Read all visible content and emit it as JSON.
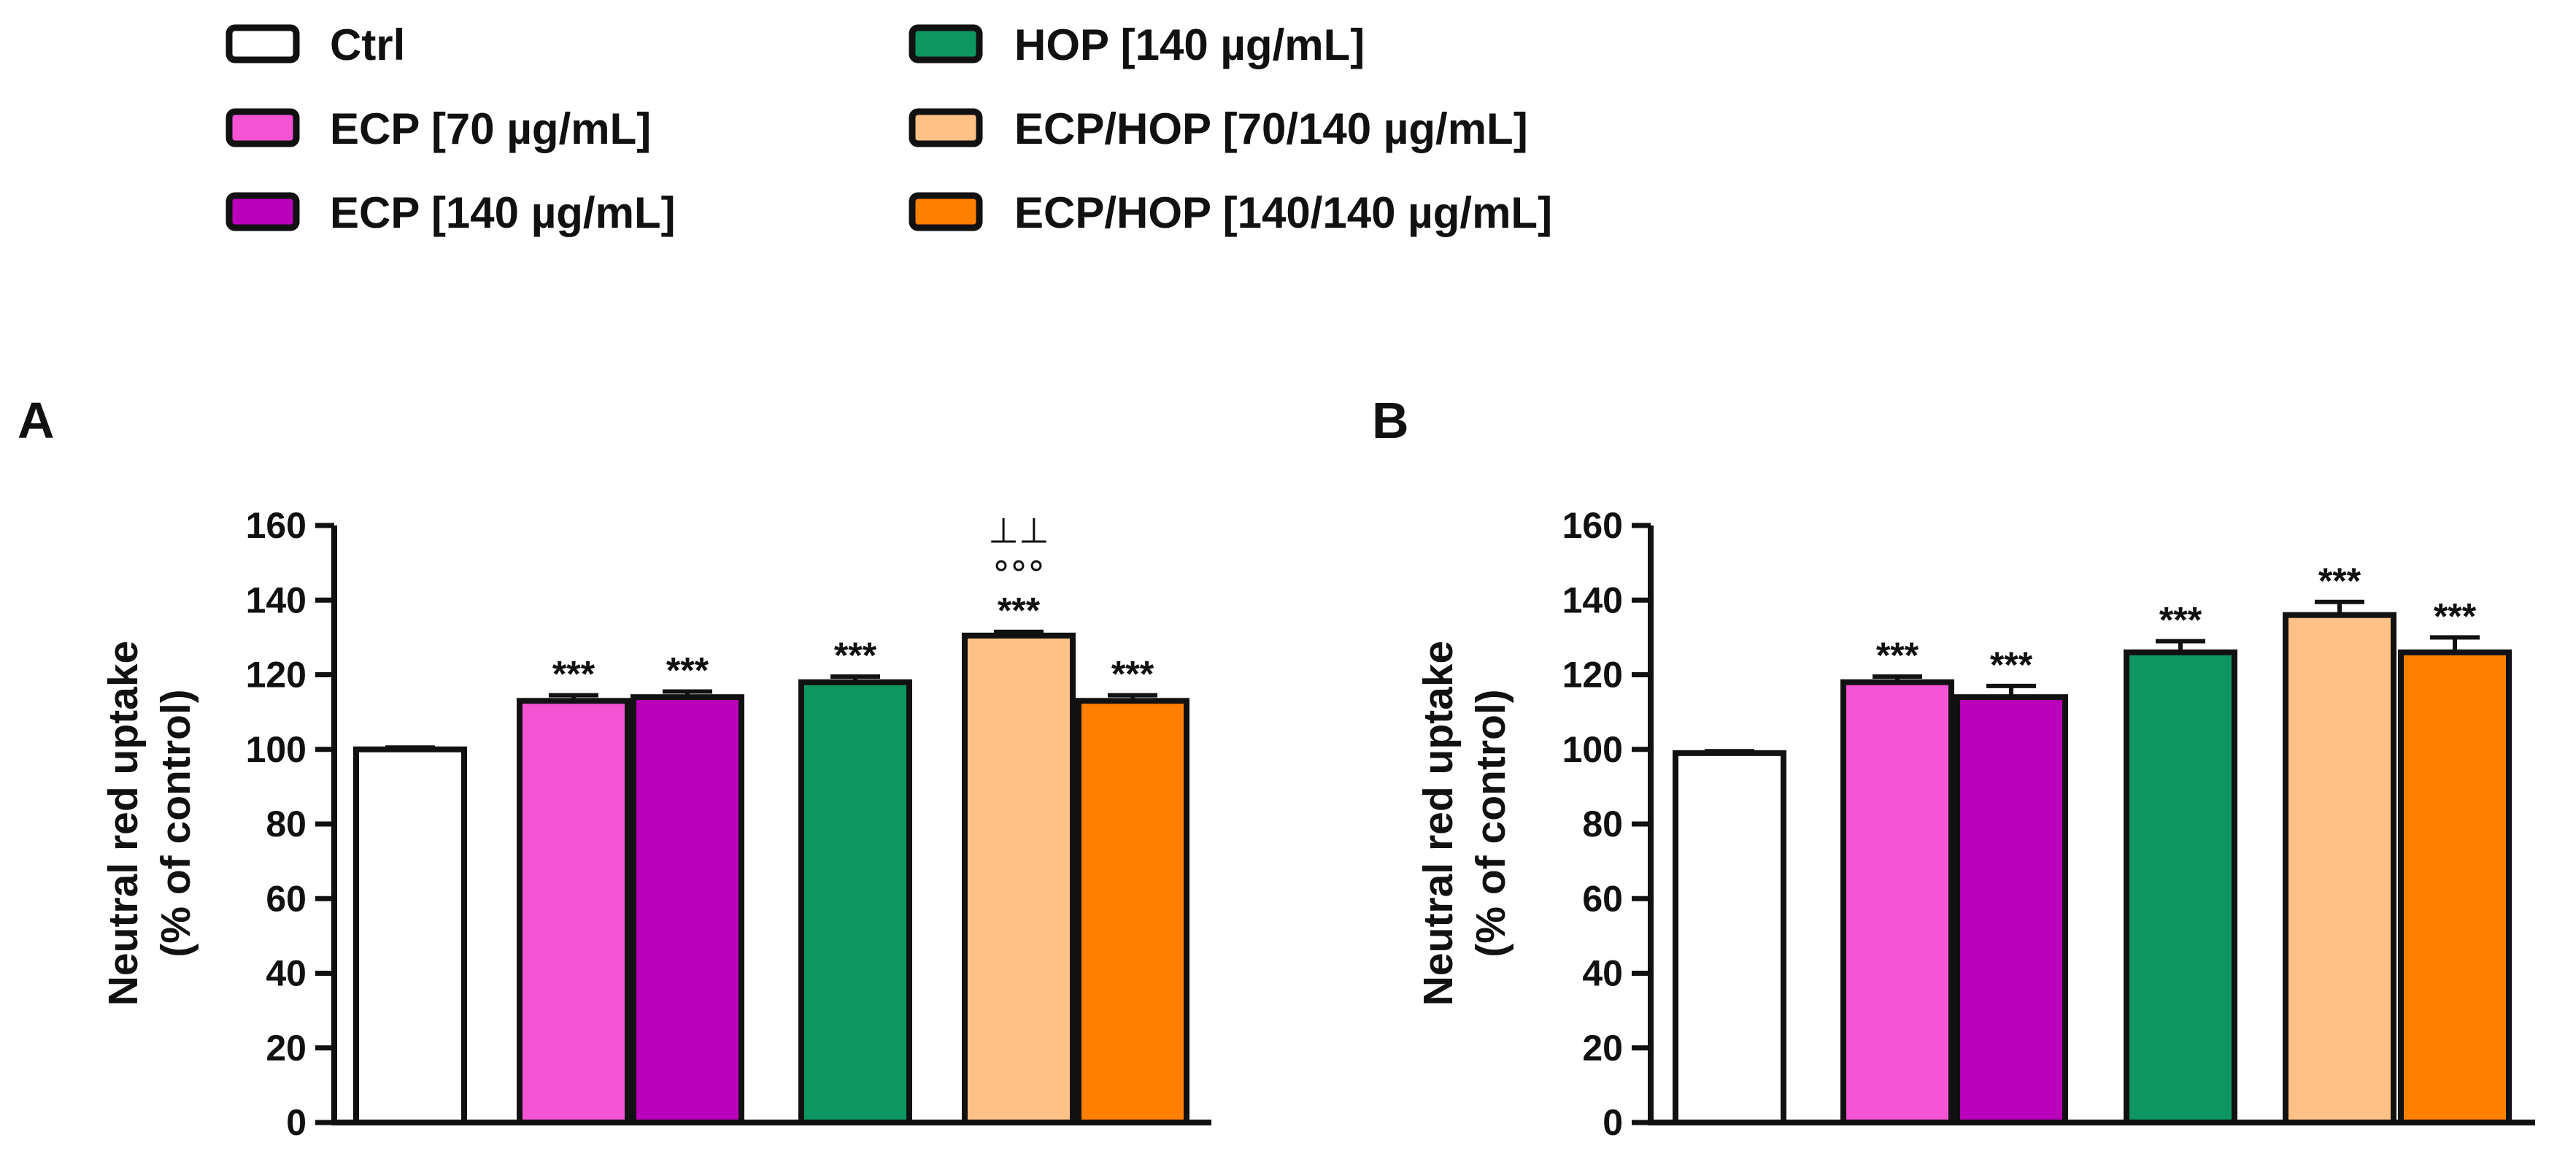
{
  "legend": {
    "items": [
      {
        "label": "Ctrl",
        "color": "#ffffff"
      },
      {
        "label": "ECP [70 µg/mL]",
        "color": "#f454d4"
      },
      {
        "label": "ECP [140 µg/mL]",
        "color": "#bb00bb"
      },
      {
        "label": "HOP [140 µg/mL]",
        "color": "#0d9661"
      },
      {
        "label": "ECP/HOP [70/140 µg/mL]",
        "color": "#ffc286"
      },
      {
        "label": "ECP/HOP [140/140 µg/mL]",
        "color": "#ff7f00"
      }
    ]
  },
  "chart_data": [
    {
      "type": "bar",
      "panel": "A",
      "ylabel_line1": "Neutral red uptake",
      "ylabel_line2": "(% of control)",
      "ylim": [
        0,
        160
      ],
      "yticks": [
        "0",
        "20",
        "40",
        "60",
        "80",
        "100",
        "120",
        "140",
        "160"
      ],
      "categories": [
        "Ctrl",
        "ECP [70 µg/mL]",
        "ECP [140 µg/mL]",
        "HOP [140 µg/mL]",
        "ECP/HOP [70/140 µg/mL]",
        "ECP/HOP [140/140 µg/mL]"
      ],
      "values": [
        100,
        113,
        114,
        118,
        130.5,
        113
      ],
      "errors": [
        0.5,
        1.5,
        1.5,
        1.5,
        1,
        1.5
      ],
      "significance": [
        "",
        "***",
        "***",
        "***",
        "***",
        "***"
      ],
      "extra_marks": [
        {
          "bar": 4,
          "line1": "⊥⊥",
          "line2": "°°°"
        }
      ]
    },
    {
      "type": "bar",
      "panel": "B",
      "ylabel_line1": "Neutral red uptake",
      "ylabel_line2": "(% of control)",
      "ylim": [
        0,
        160
      ],
      "yticks": [
        "0",
        "20",
        "40",
        "60",
        "80",
        "100",
        "120",
        "140",
        "160"
      ],
      "categories": [
        "Ctrl",
        "ECP [70 µg/mL]",
        "ECP [140 µg/mL]",
        "HOP [140 µg/mL]",
        "ECP/HOP [70/140 µg/mL]",
        "ECP/HOP [140/140 µg/mL]"
      ],
      "values": [
        99,
        118,
        114,
        126,
        136,
        126
      ],
      "errors": [
        0.5,
        1.5,
        3,
        3,
        3.5,
        4
      ],
      "significance": [
        "",
        "***",
        "***",
        "***",
        "***",
        "***"
      ],
      "extra_marks": []
    }
  ]
}
